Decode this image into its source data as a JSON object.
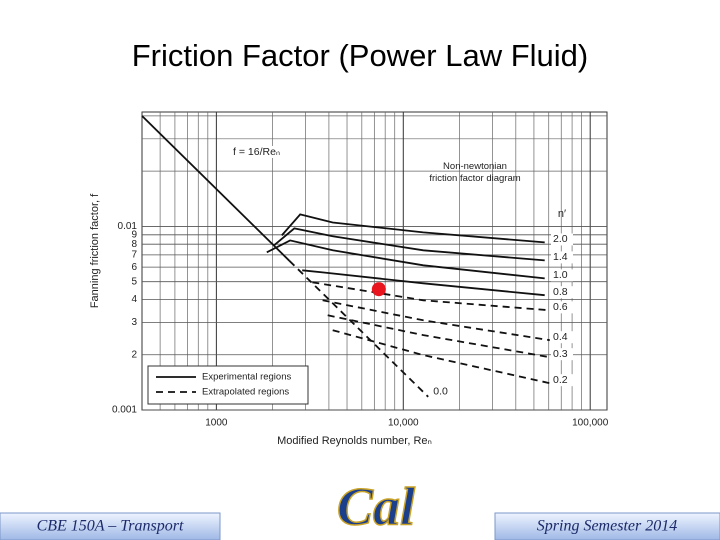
{
  "slide": {
    "title": "Friction Factor (Power Law Fluid)",
    "footer_left": "CBE 150A – Transport",
    "logo": "Cal",
    "footer_right": "Spring Semester 2014"
  },
  "chart_data": {
    "type": "line",
    "log_x": true,
    "log_y": true,
    "grid": true,
    "annotation": "Non-newtonian friction factor diagram",
    "legend_title": "n′",
    "xlabel": "Modified Reynolds number, Reₙ",
    "ylabel": "Fanning friction factor, f",
    "xlim": [
      400,
      123000
    ],
    "ylim": [
      0.001,
      0.042
    ],
    "xticks": [
      1000,
      {
        "value": 10000,
        "label": "10,000"
      },
      {
        "value": 100000,
        "label": "100,000"
      }
    ],
    "xminorticks": [
      500,
      600,
      700,
      800,
      900,
      2000,
      3000,
      4000,
      5000,
      6000,
      7000,
      8000,
      9000,
      20000,
      30000,
      40000,
      50000,
      60000,
      70000,
      80000,
      90000
    ],
    "yticks": [
      0.001,
      {
        "value": 0.002,
        "label": "2"
      },
      {
        "value": 0.003,
        "label": "3"
      },
      {
        "value": 0.004,
        "label": "4"
      },
      {
        "value": 0.005,
        "label": "5"
      },
      {
        "value": 0.006,
        "label": "6"
      },
      {
        "value": 0.007,
        "label": "7"
      },
      {
        "value": 0.008,
        "label": "8"
      },
      {
        "value": 0.009,
        "label": "9"
      },
      0.01
    ],
    "yminorticks": [
      0.02,
      0.03,
      0.04
    ],
    "legend": [
      {
        "label": "Experimental regions",
        "dashed": false
      },
      {
        "label": "Extrapolated regions",
        "dashed": true
      }
    ],
    "series": [
      {
        "name": "f = 16/Reₙ",
        "color": "#111",
        "dashed": false,
        "x": [
          400,
          2460
        ],
        "values": [
          0.04,
          0.0065
        ]
      },
      {
        "name": "0.0",
        "color": "#111",
        "dashed": true,
        "x": [
          2460,
          13600
        ],
        "values": [
          0.0065,
          0.00118
        ]
      },
      {
        "name": "2.0",
        "color": "#111",
        "dashed": false,
        "x": [
          2240,
          2810,
          4190,
          12800,
          57100
        ],
        "values": [
          0.00893,
          0.01162,
          0.0105,
          0.00928,
          0.00818
        ]
      },
      {
        "name": "1.4",
        "color": "#111",
        "dashed": false,
        "x": [
          2030,
          2610,
          4190,
          12800,
          57100
        ],
        "values": [
          0.00788,
          0.00975,
          0.00883,
          0.00741,
          0.00653
        ]
      },
      {
        "name": "1.0",
        "color": "#111",
        "dashed": false,
        "x": [
          1862,
          2480,
          4190,
          12800,
          57100
        ],
        "values": [
          0.00723,
          0.00839,
          0.00741,
          0.00614,
          0.00521
        ]
      },
      {
        "name": "0.8",
        "color": "#111",
        "dashed": false,
        "x": [
          2880,
          3700,
          12800,
          57100
        ],
        "values": [
          0.00577,
          0.00562,
          0.0049,
          0.00422
        ]
      },
      {
        "name": "0.6",
        "color": "#111",
        "dashed": true,
        "x": [
          3260,
          12800,
          60800
        ],
        "values": [
          0.00496,
          0.00396,
          0.00349
        ]
      },
      {
        "name": "0.4",
        "color": "#111",
        "dashed": true,
        "x": [
          3700,
          12800,
          60800
        ],
        "values": [
          0.00396,
          0.00308,
          0.0024
        ]
      },
      {
        "name": "0.3",
        "color": "#111",
        "dashed": true,
        "x": [
          3940,
          12800,
          60800
        ],
        "values": [
          0.00328,
          0.00256,
          0.00194
        ]
      },
      {
        "name": "0.2",
        "color": "#111",
        "dashed": true,
        "x": [
          4190,
          12800,
          60800
        ],
        "values": [
          0.00272,
          0.00199,
          0.0014
        ]
      }
    ],
    "points": [
      {
        "x": 7400,
        "y": 0.00455,
        "color": "#e8141e"
      }
    ]
  }
}
